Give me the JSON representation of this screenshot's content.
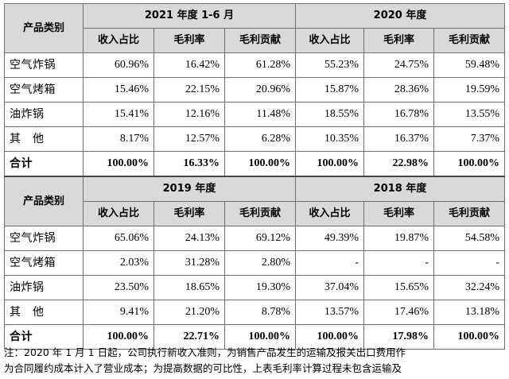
{
  "table1": {
    "category_header": "产品类别",
    "period_a": "2021 年度 1-6 月",
    "period_b": "2020 年度",
    "metrics": [
      "收入占比",
      "毛利率",
      "毛利贡献",
      "收入占比",
      "毛利率",
      "毛利贡献"
    ],
    "rows": [
      {
        "name": "空气炸锅",
        "values": [
          "60.96%",
          "16.42%",
          "61.28%",
          "55.23%",
          "24.75%",
          "59.48%"
        ]
      },
      {
        "name": "空气烤箱",
        "values": [
          "15.46%",
          "22.15%",
          "20.96%",
          "15.87%",
          "28.36%",
          "19.59%"
        ]
      },
      {
        "name": "油炸锅",
        "values": [
          "15.41%",
          "12.16%",
          "11.48%",
          "18.55%",
          "16.78%",
          "13.55%"
        ]
      },
      {
        "name": "其　他",
        "values": [
          "8.17%",
          "12.57%",
          "6.28%",
          "10.35%",
          "16.37%",
          "7.37%"
        ]
      }
    ],
    "total": {
      "name": "合计",
      "values": [
        "100.00%",
        "16.33%",
        "100.00%",
        "100.00%",
        "22.98%",
        "100.00%"
      ]
    }
  },
  "table2": {
    "category_header": "产品类别",
    "period_a": "2019 年度",
    "period_b": "2018 年度",
    "metrics": [
      "收入占比",
      "毛利率",
      "毛利贡献",
      "收入占比",
      "毛利率",
      "毛利贡献"
    ],
    "rows": [
      {
        "name": "空气炸锅",
        "values": [
          "65.06%",
          "24.13%",
          "69.12%",
          "49.39%",
          "19.87%",
          "54.58%"
        ]
      },
      {
        "name": "空气烤箱",
        "values": [
          "2.03%",
          "31.28%",
          "2.80%",
          "-",
          "-",
          "-"
        ]
      },
      {
        "name": "油炸锅",
        "values": [
          "23.50%",
          "18.65%",
          "19.30%",
          "37.04%",
          "15.65%",
          "32.24%"
        ]
      },
      {
        "name": "其　他",
        "values": [
          "9.41%",
          "21.20%",
          "8.78%",
          "13.57%",
          "17.46%",
          "13.18%"
        ]
      }
    ],
    "total": {
      "name": "合计",
      "values": [
        "100.00%",
        "22.71%",
        "100.00%",
        "100.00%",
        "17.98%",
        "100.00%"
      ]
    }
  },
  "note": {
    "line1": "注：2020 年 1 月 1 日起，公司执行新收入准则，为销售产品发生的运输及报关出口费用作",
    "line2": "为合同履约成本计入了营业成本；为提高数据的可比性，上表毛利率计算过程未包含运输及"
  }
}
